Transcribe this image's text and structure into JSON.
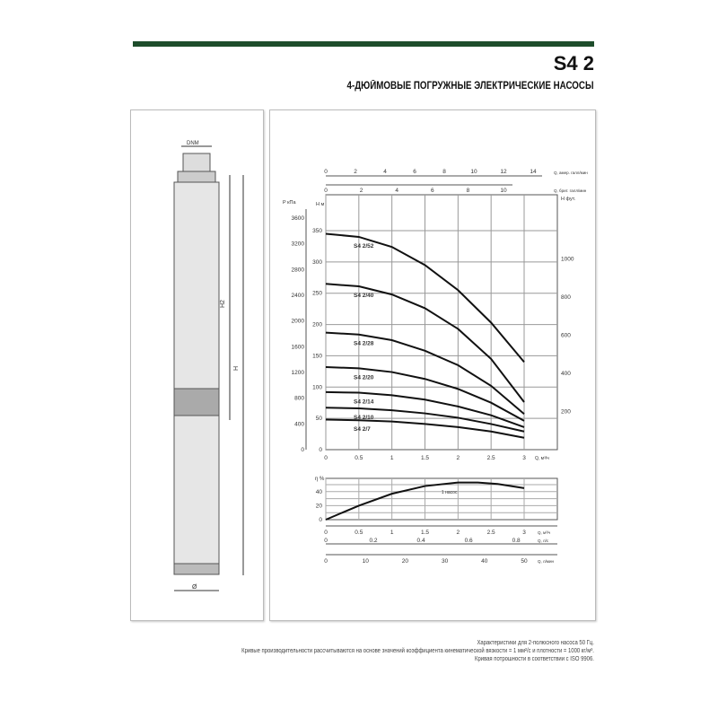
{
  "header": {
    "model": "S4 2",
    "subtitle": "4-ДЮЙМОВЫЕ ПОГРУЖНЫЕ ЭЛЕКТРИЧЕСКИЕ НАСОСЫ",
    "accent_color": "#1e4d2b"
  },
  "drawing": {
    "top_dim": "DNM",
    "h2_label": "H2",
    "h_label": "H",
    "diameter_label": "Ø"
  },
  "notes": [
    "Характеристики для 2-полюсного насоса 50 Гц.",
    "Кривые производительности рассчитываются на основе значений коэффициента кинематической вязкости = 1 мм²/с и плотности = 1000 кг/м³.",
    "Кривая потрошности в соответствии с ISO 9906."
  ],
  "chart_data": [
    {
      "type": "line",
      "title": "",
      "xlabel": "Q, м³/ч",
      "ylabel": "H м",
      "ylim": [
        0,
        350
      ],
      "xlim": [
        0,
        3
      ],
      "y2label": "P кПа",
      "y2_ticks": [
        0,
        400,
        800,
        1200,
        1600,
        2000,
        2400,
        2800,
        3200,
        3600
      ],
      "y3label": "H фут.",
      "y3_ticks": [
        200,
        400,
        600,
        800,
        1000
      ],
      "top_axes": [
        {
          "label": "Q, амер. галл/мин",
          "ticks": [
            0,
            2,
            4,
            6,
            8,
            10,
            12,
            14
          ]
        },
        {
          "label": "Q, брит. галл/мин",
          "ticks": [
            0,
            2,
            4,
            6,
            8,
            10
          ]
        }
      ],
      "x_ticks": [
        0,
        0.5,
        1,
        1.5,
        2,
        2.5,
        3
      ],
      "y_ticks": [
        0,
        50,
        100,
        150,
        200,
        250,
        300,
        350
      ],
      "grid": true,
      "series": [
        {
          "name": "S4 2/52",
          "x": [
            0,
            0.5,
            1,
            1.5,
            2,
            2.5,
            3
          ],
          "y": [
            345,
            340,
            324,
            295,
            255,
            203,
            140
          ]
        },
        {
          "name": "S4 2/40",
          "x": [
            0,
            0.5,
            1,
            1.5,
            2,
            2.5,
            3
          ],
          "y": [
            265,
            261,
            248,
            226,
            193,
            145,
            76
          ]
        },
        {
          "name": "S4 2/28",
          "x": [
            0,
            0.5,
            1,
            1.5,
            2,
            2.5,
            3
          ],
          "y": [
            187,
            184,
            175,
            158,
            135,
            102,
            57
          ]
        },
        {
          "name": "S4 2/20",
          "x": [
            0,
            0.5,
            1,
            1.5,
            2,
            2.5,
            3
          ],
          "y": [
            132,
            130,
            124,
            113,
            97,
            75,
            46
          ]
        },
        {
          "name": "S4 2/14",
          "x": [
            0,
            0.5,
            1,
            1.5,
            2,
            2.5,
            3
          ],
          "y": [
            92,
            91,
            87,
            80,
            69,
            55,
            36
          ]
        },
        {
          "name": "S4 2/10",
          "x": [
            0,
            0.5,
            1,
            1.5,
            2,
            2.5,
            3
          ],
          "y": [
            67,
            66,
            63,
            58,
            51,
            41,
            29
          ]
        },
        {
          "name": "S4 2/7",
          "x": [
            0,
            0.5,
            1,
            1.5,
            2,
            2.5,
            3
          ],
          "y": [
            48,
            47,
            45,
            41,
            36,
            29,
            19
          ]
        }
      ]
    },
    {
      "type": "line",
      "title": "",
      "ylabel": "η %",
      "ylim": [
        0,
        60
      ],
      "y_ticks": [
        0,
        20,
        40
      ],
      "xlim": [
        0,
        3
      ],
      "annotation": "1 насос",
      "grid": true,
      "x_axes": [
        {
          "label": "Q, м³/ч",
          "ticks": [
            0,
            0.5,
            1,
            1.5,
            2,
            2.5,
            3
          ]
        },
        {
          "label": "Q, л/с",
          "ticks": [
            0,
            0.2,
            0.4,
            0.6,
            0.8
          ]
        },
        {
          "label": "Q, л/мин",
          "ticks": [
            0,
            10,
            20,
            30,
            40,
            50
          ]
        }
      ],
      "series": [
        {
          "x": [
            0,
            0.5,
            1,
            1.5,
            2,
            2.3,
            2.6,
            3
          ],
          "y": [
            0,
            20,
            37,
            48,
            53,
            53,
            51,
            45
          ]
        }
      ]
    }
  ]
}
